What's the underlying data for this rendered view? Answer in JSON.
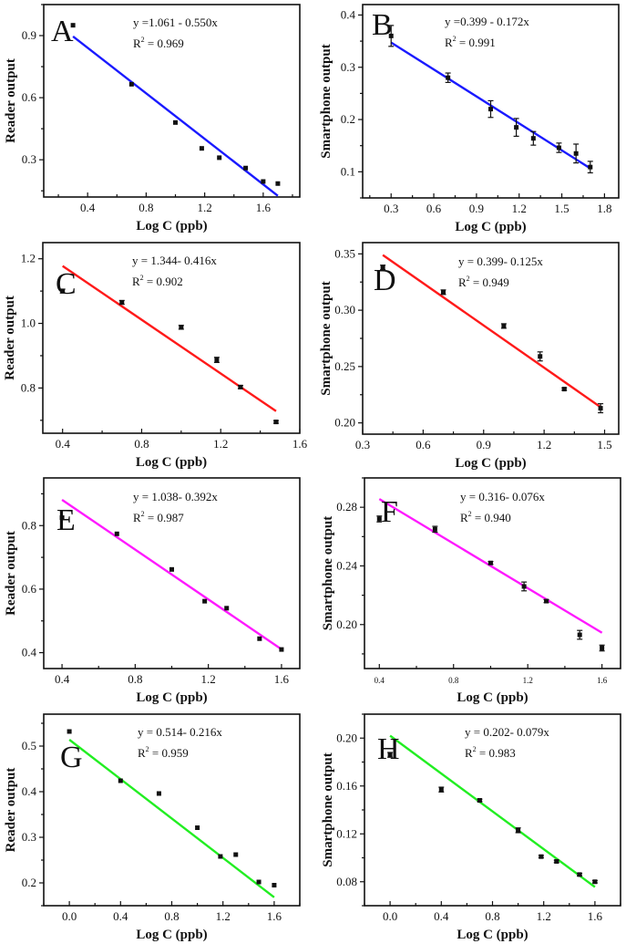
{
  "figure": {
    "layout": "4 rows x 2 columns of calibration plots"
  },
  "chart_data": [
    {
      "panel": "A",
      "type": "scatter",
      "title": "",
      "xlabel": "Log C (ppb)",
      "ylabel": "Reader output",
      "xlim": [
        0.1,
        1.85
      ],
      "ylim": [
        0.12,
        1.05
      ],
      "xticks": [
        0.4,
        0.8,
        1.2,
        1.6
      ],
      "xtick_labels": [
        "0.4",
        "0.8",
        "1.2",
        "1.6"
      ],
      "yticks": [
        0.3,
        0.6,
        0.9
      ],
      "ytick_labels": [
        "0.3",
        "0.6",
        "0.9"
      ],
      "grid": false,
      "points": {
        "x": [
          0.3,
          0.7,
          1.0,
          1.18,
          1.3,
          1.48,
          1.6,
          1.7
        ],
        "y": [
          0.95,
          0.665,
          0.48,
          0.355,
          0.31,
          0.26,
          0.195,
          0.185
        ],
        "err": [
          0,
          0,
          0,
          0,
          0,
          0,
          0,
          0
        ]
      },
      "fit": {
        "intercept": 1.061,
        "slope": -0.55,
        "x_range": [
          0.3,
          1.7
        ],
        "color": "#1a1aff"
      },
      "equation": "y =1.061 - 0.550x",
      "r2_label": "R",
      "r2_value": " = 0.969"
    },
    {
      "panel": "B",
      "type": "scatter",
      "title": "",
      "xlabel": "Log C (ppb)",
      "ylabel": "Smartphone output",
      "xlim": [
        0.1,
        1.9
      ],
      "ylim": [
        0.05,
        0.42
      ],
      "xticks": [
        0.3,
        0.6,
        0.9,
        1.2,
        1.5,
        1.8
      ],
      "xtick_labels": [
        "0.3",
        "0.6",
        "0.9",
        "1.2",
        "1.5",
        "1.8"
      ],
      "yticks": [
        0.1,
        0.2,
        0.3,
        0.4
      ],
      "ytick_labels": [
        "0.1",
        "0.2",
        "0.3",
        "0.4"
      ],
      "grid": false,
      "points": {
        "x": [
          0.3,
          0.7,
          1.0,
          1.18,
          1.3,
          1.48,
          1.6,
          1.7
        ],
        "y": [
          0.36,
          0.28,
          0.22,
          0.185,
          0.164,
          0.146,
          0.135,
          0.109
        ],
        "err": [
          0.02,
          0.009,
          0.016,
          0.017,
          0.013,
          0.009,
          0.018,
          0.011
        ]
      },
      "fit": {
        "intercept": 0.399,
        "slope": -0.172,
        "x_range": [
          0.3,
          1.7
        ],
        "color": "#1a1aff"
      },
      "equation": "y =0.399 - 0.172x",
      "r2_label": "R",
      "r2_value": " = 0.991"
    },
    {
      "panel": "C",
      "type": "scatter",
      "title": "",
      "xlabel": "Log C (ppb)",
      "ylabel": "Reader output",
      "xlim": [
        0.3,
        1.6
      ],
      "ylim": [
        0.66,
        1.25
      ],
      "xticks": [
        0.4,
        0.8,
        1.2,
        1.6
      ],
      "xtick_labels": [
        "0.4",
        "0.8",
        "1.2",
        "1.6"
      ],
      "yticks": [
        0.8,
        1.0,
        1.2
      ],
      "ytick_labels": [
        "0.8",
        "1.0",
        "1.2"
      ],
      "grid": false,
      "points": {
        "x": [
          0.4,
          0.7,
          1.0,
          1.18,
          1.3,
          1.48
        ],
        "y": [
          1.1,
          1.065,
          0.988,
          0.887,
          0.803,
          0.695
        ],
        "err": [
          0.006,
          0.006,
          0.006,
          0.008,
          0.005,
          0.004
        ]
      },
      "fit": {
        "intercept": 1.344,
        "slope": -0.416,
        "x_range": [
          0.4,
          1.48
        ],
        "color": "#ff1a1a"
      },
      "equation": "y = 1.344- 0.416x",
      "r2_label": "R",
      "r2_value": "  = 0.902"
    },
    {
      "panel": "D",
      "type": "scatter",
      "title": "",
      "xlabel": "Log C (ppb)",
      "ylabel": "Smartphone output",
      "xlim": [
        0.3,
        1.57
      ],
      "ylim": [
        0.19,
        0.36
      ],
      "xticks": [
        0.3,
        0.6,
        0.9,
        1.2,
        1.5
      ],
      "xtick_labels": [
        "0.3",
        "0.6",
        "0.9",
        "1.2",
        "1.5"
      ],
      "yticks": [
        0.2,
        0.25,
        0.3,
        0.35
      ],
      "ytick_labels": [
        "0.20",
        "0.25",
        "0.30",
        "0.35"
      ],
      "grid": false,
      "points": {
        "x": [
          0.4,
          0.7,
          1.0,
          1.18,
          1.3,
          1.48
        ],
        "y": [
          0.338,
          0.316,
          0.286,
          0.259,
          0.23,
          0.213
        ],
        "err": [
          0.002,
          0.002,
          0.002,
          0.004,
          0.001,
          0.004
        ]
      },
      "fit": {
        "intercept": 0.399,
        "slope": -0.125,
        "x_range": [
          0.4,
          1.48
        ],
        "color": "#ff1a1a"
      },
      "equation": "y = 0.399- 0.125x",
      "r2_label": "R",
      "r2_value": "  = 0.949"
    },
    {
      "panel": "E",
      "type": "scatter",
      "title": "",
      "xlabel": "Log C (ppb)",
      "ylabel": "Reader output",
      "xlim": [
        0.3,
        1.7
      ],
      "ylim": [
        0.35,
        0.95
      ],
      "xticks": [
        0.4,
        0.8,
        1.2,
        1.6
      ],
      "xtick_labels": [
        "0.4",
        "0.8",
        "1.2",
        "1.6"
      ],
      "yticks": [
        0.4,
        0.6,
        0.8
      ],
      "ytick_labels": [
        "0.4",
        "0.6",
        "0.8"
      ],
      "grid": false,
      "points": {
        "x": [
          0.4,
          0.7,
          1.0,
          1.18,
          1.3,
          1.48,
          1.6
        ],
        "y": [
          0.825,
          0.774,
          0.662,
          0.562,
          0.54,
          0.444,
          0.41
        ],
        "err": [
          0,
          0,
          0,
          0,
          0,
          0,
          0
        ]
      },
      "fit": {
        "intercept": 1.038,
        "slope": -0.392,
        "x_range": [
          0.4,
          1.6
        ],
        "color": "#ff1aff"
      },
      "equation": "y = 1.038- 0.392x",
      "r2_label": "R",
      "r2_value": "  = 0.987"
    },
    {
      "panel": "F",
      "type": "scatter",
      "title": "",
      "xlabel": "Log C (ppb)",
      "ylabel": "Smartphone output",
      "xlim": [
        0.32,
        1.7
      ],
      "ylim": [
        0.17,
        0.3
      ],
      "xticks": [
        0.4,
        0.8,
        1.2,
        1.6
      ],
      "xtick_labels": [
        "0.4",
        "0.8",
        "1.2",
        "1.6"
      ],
      "yticks": [
        0.2,
        0.24,
        0.28
      ],
      "ytick_labels": [
        "0.20",
        "0.24",
        "0.28"
      ],
      "grid": false,
      "points": {
        "x": [
          0.4,
          0.7,
          1.0,
          1.18,
          1.3,
          1.48,
          1.6
        ],
        "y": [
          0.272,
          0.265,
          0.242,
          0.226,
          0.216,
          0.193,
          0.184
        ],
        "err": [
          0.002,
          0.002,
          0.001,
          0.003,
          0.001,
          0.003,
          0.002
        ]
      },
      "fit": {
        "intercept": 0.316,
        "slope": -0.076,
        "x_range": [
          0.4,
          1.6
        ],
        "color": "#ff1aff"
      },
      "equation": "y = 0.316- 0.076x",
      "r2_label": "R",
      "r2_value": "  = 0.940"
    },
    {
      "panel": "G",
      "type": "scatter",
      "title": "",
      "xlabel": "Log C (ppb)",
      "ylabel": "Reader output",
      "xlim": [
        -0.2,
        1.8
      ],
      "ylim": [
        0.15,
        0.57
      ],
      "xticks": [
        0.0,
        0.4,
        0.8,
        1.2,
        1.6
      ],
      "xtick_labels": [
        "0.0",
        "0.4",
        "0.8",
        "1.2",
        "1.6"
      ],
      "yticks": [
        0.2,
        0.3,
        0.4,
        0.5
      ],
      "ytick_labels": [
        "0.2",
        "0.3",
        "0.4",
        "0.5"
      ],
      "grid": false,
      "points": {
        "x": [
          0.0,
          0.4,
          0.7,
          1.0,
          1.18,
          1.3,
          1.48,
          1.6
        ],
        "y": [
          0.532,
          0.424,
          0.396,
          0.321,
          0.258,
          0.262,
          0.202,
          0.195
        ],
        "err": [
          0,
          0,
          0,
          0,
          0,
          0,
          0,
          0
        ]
      },
      "fit": {
        "intercept": 0.514,
        "slope": -0.216,
        "x_range": [
          0.0,
          1.6
        ],
        "color": "#22ee22"
      },
      "equation": "y = 0.514- 0.216x",
      "r2_label": "R",
      "r2_value": "  = 0.959"
    },
    {
      "panel": "H",
      "type": "scatter",
      "title": "",
      "xlabel": "Log C (ppb)",
      "ylabel": "Smartphone output",
      "xlim": [
        -0.2,
        1.8
      ],
      "ylim": [
        0.06,
        0.22
      ],
      "xticks": [
        0.0,
        0.4,
        0.8,
        1.2,
        1.6
      ],
      "xtick_labels": [
        "0.0",
        "0.4",
        "0.8",
        "1.2",
        "1.6"
      ],
      "yticks": [
        0.08,
        0.12,
        0.16,
        0.2
      ],
      "ytick_labels": [
        "0.08",
        "0.12",
        "0.16",
        "0.20"
      ],
      "grid": false,
      "points": {
        "x": [
          0.0,
          0.4,
          0.7,
          1.0,
          1.18,
          1.3,
          1.48,
          1.6
        ],
        "y": [
          0.186,
          0.157,
          0.148,
          0.123,
          0.101,
          0.097,
          0.086,
          0.08
        ],
        "err": [
          0.002,
          0.002,
          0.001,
          0.002,
          0.001,
          0.001,
          0.001,
          0.001
        ]
      },
      "fit": {
        "intercept": 0.202,
        "slope": -0.079,
        "x_range": [
          0.0,
          1.6
        ],
        "color": "#22ee22"
      },
      "equation": "y = 0.202- 0.079x",
      "r2_label": "R",
      "r2_value": "  = 0.983"
    }
  ]
}
